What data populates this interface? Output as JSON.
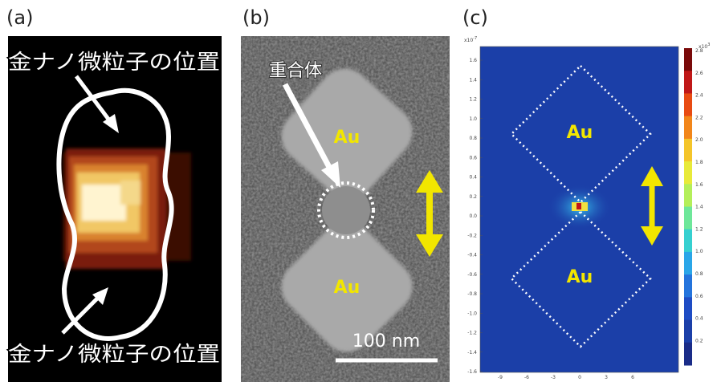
{
  "panel_a": {
    "label": "(a)",
    "caption_top": "金ナノ微粒子の位置",
    "caption_bottom": "金ナノ微粒子の位置"
  },
  "panel_b": {
    "label": "(b)",
    "polymer_label": "重合体",
    "particle_top": "Au",
    "particle_bottom": "Au",
    "scale_bar": "100 nm"
  },
  "panel_c": {
    "label": "(c)",
    "particle_top": "Au",
    "particle_bottom": "Au",
    "y_exponent_base": "x10",
    "y_exponent": "-7",
    "yticks": [
      "1.6",
      "1.4",
      "1.2",
      "1.0",
      "0.8",
      "0.6",
      "0.4",
      "0.2",
      "0.0",
      "-0.2",
      "-0.4",
      "-0.6",
      "-0.8",
      "-1.0",
      "-1.2",
      "-1.4",
      "-1.6"
    ],
    "xticks": [
      "-9",
      "-6",
      "-3",
      "0",
      "3",
      "6"
    ],
    "colorbar_exponent_base": "x10",
    "colorbar_exponent": "3",
    "colorbar_ticks": [
      "2.8",
      "2.6",
      "2.4",
      "2.2",
      "2.0",
      "1.8",
      "1.6",
      "1.4",
      "1.2",
      "1.0",
      "0.8",
      "0.6",
      "0.4",
      "0.2"
    ]
  }
}
